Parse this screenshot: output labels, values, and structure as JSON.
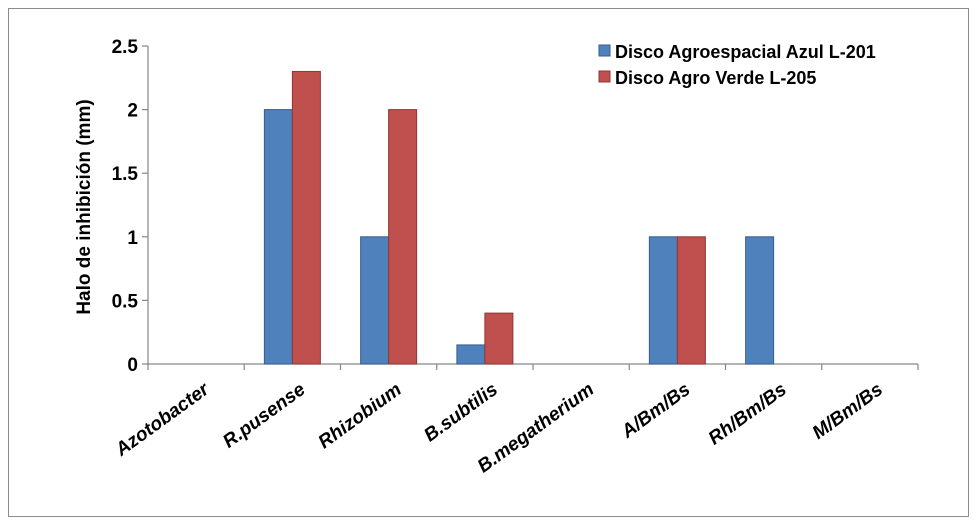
{
  "chart_data": {
    "type": "bar",
    "title": "",
    "xlabel": "",
    "ylabel": "Halo de inhibición (mm)",
    "ylim": [
      0,
      2.5
    ],
    "yticks": [
      0,
      0.5,
      1,
      1.5,
      2,
      2.5
    ],
    "ytick_labels": [
      "0",
      "0.5",
      "1",
      "1.5",
      "2",
      "2.5"
    ],
    "categories": [
      "Azotobacter",
      "R.pusense",
      "Rhizobium",
      "B.subtilis",
      "B.megatherium",
      "A/Bm/Bs",
      "Rh/Bm/Bs",
      "M/Bm/Bs"
    ],
    "series": [
      {
        "name": "Disco Agroespacial Azul L-201",
        "color": "#4f81bd",
        "values": [
          0,
          2,
          1,
          0.15,
          0,
          1,
          1,
          0
        ]
      },
      {
        "name": "Disco Agro Verde L-205",
        "color": "#c0504d",
        "values": [
          0,
          2.3,
          2,
          0.4,
          0,
          1,
          0,
          0
        ]
      }
    ],
    "grid": false,
    "legend_position": "top-right"
  }
}
